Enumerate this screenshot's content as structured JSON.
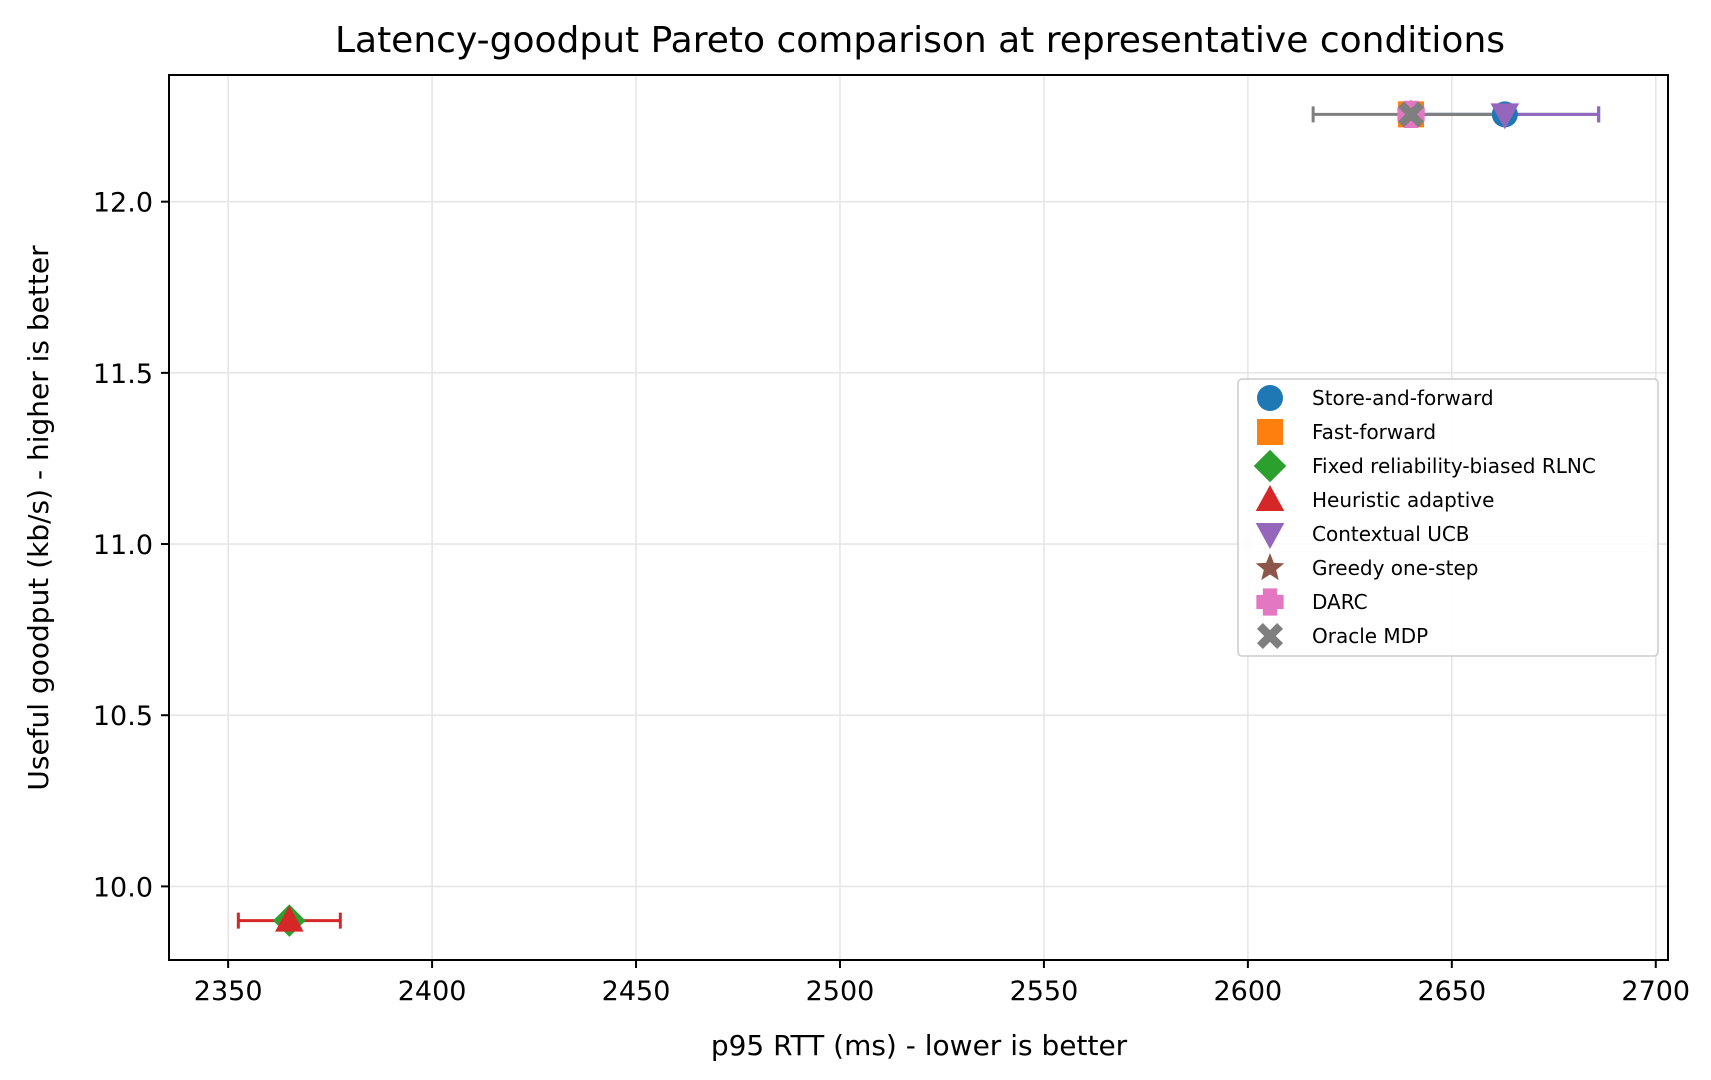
{
  "chart_data": {
    "type": "scatter",
    "title": "Latency-goodput Pareto comparison at representative conditions",
    "xlabel": "p95 RTT (ms) - lower is better",
    "ylabel": "Useful goodput (kb/s) - higher is better",
    "xlim": [
      2335.5,
      2703.0
    ],
    "ylim": [
      9.785,
      12.37
    ],
    "xticks": [
      2350,
      2400,
      2450,
      2500,
      2550,
      2600,
      2650,
      2700
    ],
    "yticks": [
      10.0,
      10.5,
      11.0,
      11.5,
      12.0
    ],
    "xtick_labels": [
      "2350",
      "2400",
      "2450",
      "2500",
      "2550",
      "2600",
      "2650",
      "2700"
    ],
    "ytick_labels": [
      "10.0",
      "10.5",
      "11.0",
      "11.5",
      "12.0"
    ],
    "grid": true,
    "legend_position": "center-right",
    "series": [
      {
        "name": "Store-and-forward",
        "x": 2663,
        "y": 12.255,
        "xerr": 23,
        "color": "#1f77b4",
        "marker": "circle"
      },
      {
        "name": "Fast-forward",
        "x": 2640,
        "y": 12.255,
        "xerr": 0,
        "color": "#ff7f0e",
        "marker": "square"
      },
      {
        "name": "Fixed reliability-biased RLNC",
        "x": 2365,
        "y": 9.9,
        "xerr": 0,
        "color": "#2ca02c",
        "marker": "diamond"
      },
      {
        "name": "Heuristic adaptive",
        "x": 2365,
        "y": 9.9,
        "xerr": 12.5,
        "color": "#d62728",
        "marker": "triangle-up"
      },
      {
        "name": "Contextual UCB",
        "x": 2663,
        "y": 12.255,
        "xerr": 23,
        "color": "#9467bd",
        "marker": "triangle-down"
      },
      {
        "name": "Greedy one-step",
        "x": 2640,
        "y": 12.255,
        "xerr": 0,
        "color": "#8c564b",
        "marker": "star"
      },
      {
        "name": "DARC",
        "x": 2640,
        "y": 12.255,
        "xerr": 0,
        "color": "#e377c2",
        "marker": "plus"
      },
      {
        "name": "Oracle MDP",
        "x": 2640,
        "y": 12.255,
        "xerr": 24,
        "color": "#7f7f7f",
        "marker": "x"
      }
    ]
  }
}
